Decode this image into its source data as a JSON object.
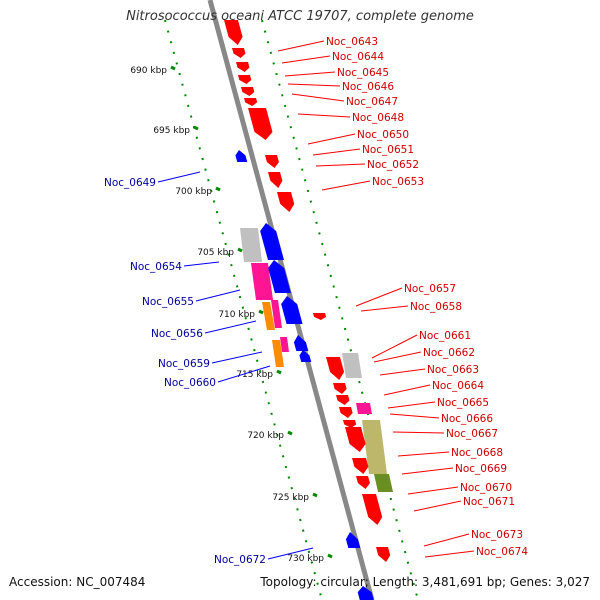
{
  "title": "Nitrosococcus oceani ATCC 19707, complete genome",
  "accession": "Accession: NC_007484",
  "summary": "Topology: circular; Length: 3,481,691 bp; Genes: 3,027",
  "colors": {
    "forward_gene": "#ff0000",
    "reverse_gene": "#0000ff",
    "forward_label": "#cc0000",
    "reverse_label": "#000099",
    "backbone": "#888888",
    "ticks": "#008800",
    "gray_feature": "#c0c0c0",
    "magenta_feature": "#ff1493",
    "orange_feature": "#ff8c00",
    "olive_feature": "#bdb76b",
    "green_feature": "#6b8e23"
  },
  "kbp_labels": [
    "690 kbp",
    "695 kbp",
    "700 kbp",
    "705 kbp",
    "710 kbp",
    "715 kbp",
    "720 kbp",
    "725 kbp",
    "730 kbp"
  ],
  "forward_genes": [
    "Noc_0643",
    "Noc_0644",
    "Noc_0645",
    "Noc_0646",
    "Noc_0647",
    "Noc_0648",
    "Noc_0650",
    "Noc_0651",
    "Noc_0652",
    "Noc_0653",
    "Noc_0657",
    "Noc_0658",
    "Noc_0661",
    "Noc_0662",
    "Noc_0663",
    "Noc_0664",
    "Noc_0665",
    "Noc_0666",
    "Noc_0667",
    "Noc_0668",
    "Noc_0669",
    "Noc_0670",
    "Noc_0671",
    "Noc_0673",
    "Noc_0674"
  ],
  "reverse_genes": [
    "Noc_0649",
    "Noc_0654",
    "Noc_0655",
    "Noc_0656",
    "Noc_0659",
    "Noc_0660",
    "Noc_0672"
  ]
}
